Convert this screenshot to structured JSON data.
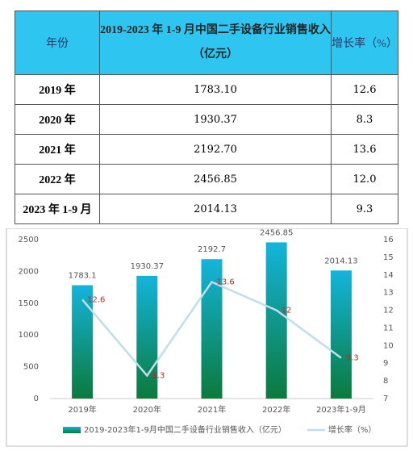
{
  "table": {
    "header": [
      "年份",
      [
        "2019-2023 年 1-9 月中国二手设备行业销售收入",
        "（亿元）"
      ],
      "增长率（%）"
    ],
    "rows": [
      [
        "2019 年",
        "1783.10",
        "12.6"
      ],
      [
        "2020 年",
        "1930.37",
        "8.3"
      ],
      [
        "2021 年",
        "2192.70",
        "13.6"
      ],
      [
        "2022 年",
        "2456.85",
        "12.0"
      ],
      [
        "2023 年 1-9 月",
        "2014.13",
        "9.3"
      ]
    ]
  },
  "chart_data": {
    "type": "bar",
    "categories": [
      "2019年",
      "2020年",
      "2021年",
      "2022年",
      "2023年1-9月"
    ],
    "series": [
      {
        "name": "2019-2023年1-9月中国二手设备行业销售收入（亿元）",
        "color": "#14b4dc",
        "type": "bar",
        "values": [
          1783.1,
          1930.37,
          2192.7,
          2456.85,
          2014.13
        ]
      },
      {
        "name": "增长率（%）",
        "color": "#bfdfe8",
        "type": "line",
        "axis": "y2",
        "label_color": "#d0201c",
        "values": [
          12.6,
          8.3,
          13.6,
          12,
          9.3
        ]
      }
    ],
    "ylim": [
      0,
      2500
    ],
    "yticks": [
      0,
      500,
      1000,
      1500,
      2000,
      2500
    ],
    "y2lim": [
      7,
      16
    ],
    "y2ticks": [
      7,
      8,
      9,
      10,
      11,
      12,
      13,
      14,
      15,
      16
    ],
    "grid": false,
    "legend": "bottom"
  }
}
